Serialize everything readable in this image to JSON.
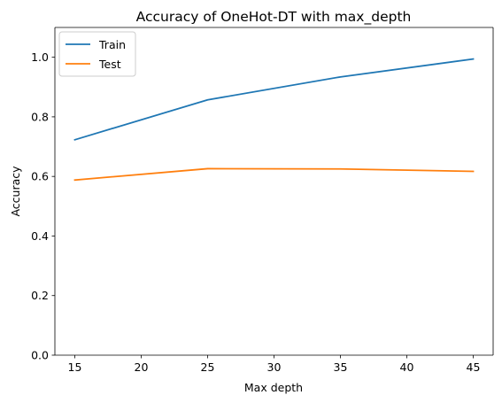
{
  "chart_data": {
    "type": "line",
    "title": "Accuracy of OneHot-DT with max_depth",
    "xlabel": "Max depth",
    "ylabel": "Accuracy",
    "x": [
      15,
      25,
      35,
      45
    ],
    "xlim": [
      13.5,
      46.5
    ],
    "ylim": [
      0.0,
      1.1
    ],
    "xticks": [
      15,
      20,
      25,
      30,
      35,
      40,
      45
    ],
    "yticks": [
      0.0,
      0.2,
      0.4,
      0.6,
      0.8,
      1.0
    ],
    "xtick_labels": [
      "15",
      "20",
      "25",
      "30",
      "35",
      "40",
      "45"
    ],
    "ytick_labels": [
      "0.0",
      "0.2",
      "0.4",
      "0.6",
      "0.8",
      "1.0"
    ],
    "series": [
      {
        "name": "Train",
        "color": "#1f77b4",
        "values": [
          0.723,
          0.857,
          0.934,
          0.994
        ]
      },
      {
        "name": "Test",
        "color": "#ff7f0e",
        "values": [
          0.588,
          0.626,
          0.625,
          0.617
        ]
      }
    ],
    "legend": {
      "position": "top-left"
    },
    "grid": false
  }
}
